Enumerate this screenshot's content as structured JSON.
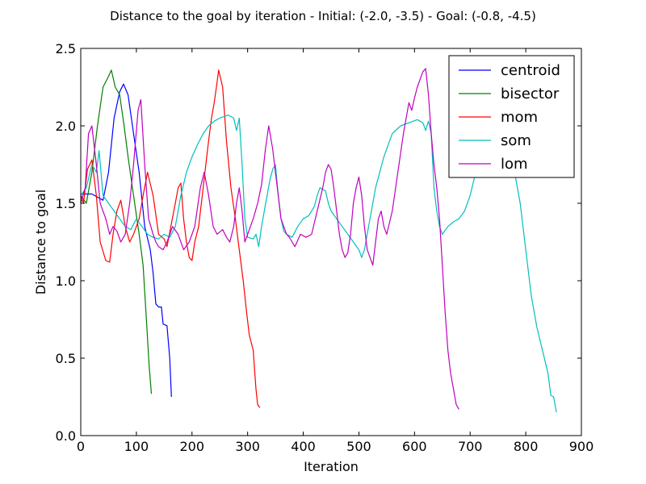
{
  "chart_data": {
    "type": "line",
    "title": "Distance to the goal by iteration - Initial: (-2.0, -3.5) - Goal: (-0.8, -4.5)",
    "xlabel": "Iteration",
    "ylabel": "Distance to goal",
    "xlim": [
      0,
      900
    ],
    "ylim": [
      0,
      2.5
    ],
    "xticks": [
      0,
      100,
      200,
      300,
      400,
      500,
      600,
      700,
      800,
      900
    ],
    "yticks": [
      0.0,
      0.5,
      1.0,
      1.5,
      2.0,
      2.5
    ],
    "xtick_labels": [
      "0",
      "100",
      "200",
      "300",
      "400",
      "500",
      "600",
      "700",
      "800",
      "900"
    ],
    "ytick_labels": [
      "0.0",
      "0.5",
      "1.0",
      "1.5",
      "2.0",
      "2.5"
    ],
    "grid": false,
    "legend_position": "top-right",
    "series": [
      {
        "name": "centroid",
        "color": "#0000ff",
        "points": [
          [
            0,
            1.56
          ],
          [
            20,
            1.56
          ],
          [
            40,
            1.52
          ],
          [
            50,
            1.7
          ],
          [
            60,
            2.05
          ],
          [
            70,
            2.22
          ],
          [
            77,
            2.27
          ],
          [
            85,
            2.2
          ],
          [
            95,
            1.95
          ],
          [
            105,
            1.7
          ],
          [
            115,
            1.35
          ],
          [
            125,
            1.2
          ],
          [
            130,
            1.05
          ],
          [
            135,
            0.85
          ],
          [
            140,
            0.83
          ],
          [
            145,
            0.83
          ],
          [
            148,
            0.72
          ],
          [
            155,
            0.71
          ],
          [
            160,
            0.5
          ],
          [
            163,
            0.25
          ]
        ]
      },
      {
        "name": "bisector",
        "color": "#008000",
        "points": [
          [
            0,
            1.55
          ],
          [
            10,
            1.5
          ],
          [
            20,
            1.7
          ],
          [
            30,
            2.0
          ],
          [
            40,
            2.25
          ],
          [
            50,
            2.32
          ],
          [
            55,
            2.36
          ],
          [
            62,
            2.25
          ],
          [
            70,
            2.2
          ],
          [
            78,
            2.0
          ],
          [
            85,
            1.8
          ],
          [
            95,
            1.55
          ],
          [
            105,
            1.3
          ],
          [
            112,
            1.1
          ],
          [
            118,
            0.75
          ],
          [
            123,
            0.45
          ],
          [
            127,
            0.27
          ]
        ]
      },
      {
        "name": "mom",
        "color": "#ff0000",
        "points": [
          [
            0,
            1.55
          ],
          [
            5,
            1.5
          ],
          [
            12,
            1.72
          ],
          [
            20,
            1.78
          ],
          [
            28,
            1.55
          ],
          [
            35,
            1.25
          ],
          [
            45,
            1.13
          ],
          [
            52,
            1.12
          ],
          [
            58,
            1.3
          ],
          [
            65,
            1.45
          ],
          [
            72,
            1.52
          ],
          [
            80,
            1.35
          ],
          [
            88,
            1.25
          ],
          [
            95,
            1.3
          ],
          [
            105,
            1.4
          ],
          [
            112,
            1.55
          ],
          [
            120,
            1.7
          ],
          [
            130,
            1.55
          ],
          [
            140,
            1.3
          ],
          [
            150,
            1.27
          ],
          [
            155,
            1.22
          ],
          [
            162,
            1.35
          ],
          [
            170,
            1.5
          ],
          [
            175,
            1.6
          ],
          [
            180,
            1.63
          ],
          [
            185,
            1.4
          ],
          [
            190,
            1.25
          ],
          [
            195,
            1.15
          ],
          [
            200,
            1.13
          ],
          [
            205,
            1.25
          ],
          [
            212,
            1.35
          ],
          [
            220,
            1.6
          ],
          [
            228,
            1.85
          ],
          [
            235,
            2.05
          ],
          [
            240,
            2.15
          ],
          [
            245,
            2.28
          ],
          [
            248,
            2.36
          ],
          [
            255,
            2.25
          ],
          [
            262,
            1.9
          ],
          [
            270,
            1.6
          ],
          [
            278,
            1.4
          ],
          [
            285,
            1.2
          ],
          [
            292,
            1.0
          ],
          [
            298,
            0.8
          ],
          [
            303,
            0.65
          ],
          [
            310,
            0.55
          ],
          [
            315,
            0.3
          ],
          [
            318,
            0.2
          ],
          [
            322,
            0.18
          ]
        ]
      },
      {
        "name": "som",
        "color": "#00bfbf",
        "points": [
          [
            0,
            1.55
          ],
          [
            10,
            1.6
          ],
          [
            20,
            1.75
          ],
          [
            28,
            1.7
          ],
          [
            33,
            1.84
          ],
          [
            40,
            1.55
          ],
          [
            50,
            1.5
          ],
          [
            60,
            1.45
          ],
          [
            70,
            1.4
          ],
          [
            80,
            1.35
          ],
          [
            90,
            1.33
          ],
          [
            100,
            1.4
          ],
          [
            110,
            1.35
          ],
          [
            120,
            1.3
          ],
          [
            130,
            1.28
          ],
          [
            140,
            1.27
          ],
          [
            150,
            1.3
          ],
          [
            160,
            1.28
          ],
          [
            170,
            1.35
          ],
          [
            180,
            1.55
          ],
          [
            190,
            1.7
          ],
          [
            200,
            1.8
          ],
          [
            210,
            1.88
          ],
          [
            220,
            1.95
          ],
          [
            230,
            2.0
          ],
          [
            240,
            2.03
          ],
          [
            250,
            2.05
          ],
          [
            265,
            2.07
          ],
          [
            275,
            2.05
          ],
          [
            280,
            1.97
          ],
          [
            285,
            2.05
          ],
          [
            290,
            1.75
          ],
          [
            295,
            1.4
          ],
          [
            300,
            1.28
          ],
          [
            310,
            1.27
          ],
          [
            315,
            1.3
          ],
          [
            320,
            1.22
          ],
          [
            325,
            1.35
          ],
          [
            330,
            1.45
          ],
          [
            335,
            1.55
          ],
          [
            340,
            1.65
          ],
          [
            345,
            1.72
          ],
          [
            350,
            1.75
          ],
          [
            355,
            1.55
          ],
          [
            360,
            1.4
          ],
          [
            365,
            1.32
          ],
          [
            370,
            1.3
          ],
          [
            380,
            1.28
          ],
          [
            390,
            1.35
          ],
          [
            400,
            1.4
          ],
          [
            410,
            1.42
          ],
          [
            420,
            1.48
          ],
          [
            425,
            1.55
          ],
          [
            430,
            1.6
          ],
          [
            440,
            1.58
          ],
          [
            445,
            1.5
          ],
          [
            450,
            1.45
          ],
          [
            460,
            1.4
          ],
          [
            470,
            1.35
          ],
          [
            480,
            1.3
          ],
          [
            490,
            1.25
          ],
          [
            500,
            1.2
          ],
          [
            505,
            1.15
          ],
          [
            510,
            1.2
          ],
          [
            520,
            1.4
          ],
          [
            530,
            1.6
          ],
          [
            545,
            1.8
          ],
          [
            560,
            1.95
          ],
          [
            575,
            2.0
          ],
          [
            590,
            2.02
          ],
          [
            605,
            2.04
          ],
          [
            615,
            2.02
          ],
          [
            620,
            1.97
          ],
          [
            625,
            2.03
          ],
          [
            630,
            1.95
          ],
          [
            635,
            1.6
          ],
          [
            640,
            1.45
          ],
          [
            645,
            1.35
          ],
          [
            650,
            1.3
          ],
          [
            660,
            1.35
          ],
          [
            670,
            1.38
          ],
          [
            680,
            1.4
          ],
          [
            690,
            1.45
          ],
          [
            700,
            1.55
          ],
          [
            710,
            1.7
          ],
          [
            720,
            1.9
          ],
          [
            735,
            2.05
          ],
          [
            750,
            2.08
          ],
          [
            760,
            2.05
          ],
          [
            770,
            2.0
          ],
          [
            780,
            1.7
          ],
          [
            790,
            1.5
          ],
          [
            800,
            1.2
          ],
          [
            810,
            0.9
          ],
          [
            820,
            0.7
          ],
          [
            830,
            0.55
          ],
          [
            840,
            0.4
          ],
          [
            845,
            0.26
          ],
          [
            850,
            0.25
          ],
          [
            855,
            0.15
          ]
        ]
      },
      {
        "name": "lom",
        "color": "#bf00bf",
        "points": [
          [
            0,
            1.5
          ],
          [
            8,
            1.6
          ],
          [
            14,
            1.95
          ],
          [
            20,
            2.0
          ],
          [
            28,
            1.75
          ],
          [
            35,
            1.5
          ],
          [
            45,
            1.4
          ],
          [
            52,
            1.3
          ],
          [
            58,
            1.35
          ],
          [
            65,
            1.32
          ],
          [
            72,
            1.25
          ],
          [
            80,
            1.3
          ],
          [
            88,
            1.5
          ],
          [
            95,
            1.75
          ],
          [
            103,
            2.1
          ],
          [
            108,
            2.17
          ],
          [
            115,
            1.75
          ],
          [
            122,
            1.4
          ],
          [
            130,
            1.3
          ],
          [
            135,
            1.25
          ],
          [
            140,
            1.22
          ],
          [
            148,
            1.2
          ],
          [
            155,
            1.25
          ],
          [
            165,
            1.35
          ],
          [
            175,
            1.3
          ],
          [
            185,
            1.2
          ],
          [
            195,
            1.25
          ],
          [
            205,
            1.35
          ],
          [
            215,
            1.6
          ],
          [
            222,
            1.7
          ],
          [
            230,
            1.55
          ],
          [
            238,
            1.35
          ],
          [
            245,
            1.3
          ],
          [
            255,
            1.33
          ],
          [
            262,
            1.28
          ],
          [
            268,
            1.25
          ],
          [
            275,
            1.35
          ],
          [
            280,
            1.5
          ],
          [
            285,
            1.6
          ],
          [
            290,
            1.45
          ],
          [
            295,
            1.25
          ],
          [
            300,
            1.3
          ],
          [
            310,
            1.4
          ],
          [
            318,
            1.5
          ],
          [
            325,
            1.62
          ],
          [
            332,
            1.85
          ],
          [
            338,
            2.0
          ],
          [
            345,
            1.85
          ],
          [
            350,
            1.7
          ],
          [
            355,
            1.55
          ],
          [
            360,
            1.4
          ],
          [
            365,
            1.35
          ],
          [
            370,
            1.3
          ],
          [
            375,
            1.28
          ],
          [
            380,
            1.25
          ],
          [
            385,
            1.22
          ],
          [
            395,
            1.3
          ],
          [
            405,
            1.28
          ],
          [
            415,
            1.3
          ],
          [
            425,
            1.45
          ],
          [
            435,
            1.6
          ],
          [
            440,
            1.7
          ],
          [
            445,
            1.75
          ],
          [
            450,
            1.72
          ],
          [
            455,
            1.6
          ],
          [
            460,
            1.45
          ],
          [
            465,
            1.3
          ],
          [
            470,
            1.2
          ],
          [
            475,
            1.15
          ],
          [
            480,
            1.18
          ],
          [
            485,
            1.3
          ],
          [
            490,
            1.5
          ],
          [
            495,
            1.6
          ],
          [
            500,
            1.67
          ],
          [
            505,
            1.55
          ],
          [
            510,
            1.35
          ],
          [
            515,
            1.2
          ],
          [
            520,
            1.15
          ],
          [
            525,
            1.1
          ],
          [
            530,
            1.25
          ],
          [
            535,
            1.4
          ],
          [
            540,
            1.45
          ],
          [
            545,
            1.35
          ],
          [
            550,
            1.3
          ],
          [
            560,
            1.45
          ],
          [
            570,
            1.7
          ],
          [
            580,
            1.95
          ],
          [
            590,
            2.15
          ],
          [
            595,
            2.1
          ],
          [
            600,
            2.18
          ],
          [
            605,
            2.25
          ],
          [
            610,
            2.3
          ],
          [
            615,
            2.35
          ],
          [
            620,
            2.37
          ],
          [
            625,
            2.2
          ],
          [
            630,
            1.95
          ],
          [
            635,
            1.75
          ],
          [
            640,
            1.6
          ],
          [
            645,
            1.4
          ],
          [
            650,
            1.1
          ],
          [
            655,
            0.8
          ],
          [
            660,
            0.55
          ],
          [
            665,
            0.4
          ],
          [
            670,
            0.3
          ],
          [
            675,
            0.2
          ],
          [
            680,
            0.17
          ]
        ]
      }
    ]
  }
}
